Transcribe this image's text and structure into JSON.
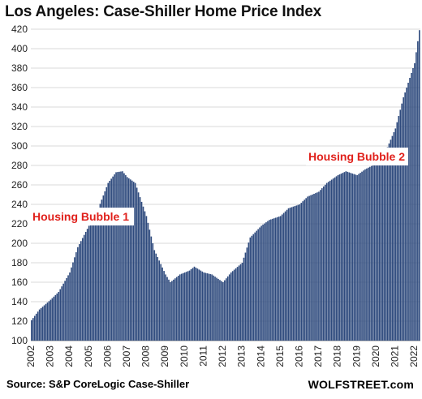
{
  "chart_data": {
    "type": "bar",
    "title": "Los Angeles: Case-Shiller Home Price Index",
    "xlabel": "",
    "ylabel": "",
    "ylim": [
      100,
      420
    ],
    "yticks": [
      100,
      120,
      140,
      160,
      180,
      200,
      220,
      240,
      260,
      280,
      300,
      320,
      340,
      360,
      380,
      400,
      420
    ],
    "xticks": [
      "2002",
      "2003",
      "2004",
      "2005",
      "2006",
      "2007",
      "2008",
      "2009",
      "2010",
      "2011",
      "2012",
      "2013",
      "2014",
      "2015",
      "2016",
      "2017",
      "2018",
      "2019",
      "2020",
      "2021",
      "2022"
    ],
    "grid": true,
    "bar_color": "#2e4a7d",
    "x_start": "2002-01",
    "x_end": "2022-04",
    "frequency": "monthly",
    "anchors": [
      [
        "2002-01",
        121
      ],
      [
        "2002-06",
        132
      ],
      [
        "2003-01",
        142
      ],
      [
        "2003-06",
        150
      ],
      [
        "2004-01",
        170
      ],
      [
        "2004-06",
        196
      ],
      [
        "2005-01",
        218
      ],
      [
        "2005-06",
        232
      ],
      [
        "2006-01",
        262
      ],
      [
        "2006-06",
        273
      ],
      [
        "2006-10",
        274
      ],
      [
        "2007-01",
        268
      ],
      [
        "2007-06",
        262
      ],
      [
        "2008-01",
        228
      ],
      [
        "2008-06",
        193
      ],
      [
        "2009-01",
        168
      ],
      [
        "2009-04",
        160
      ],
      [
        "2009-10",
        168
      ],
      [
        "2010-04",
        172
      ],
      [
        "2010-07",
        176
      ],
      [
        "2011-01",
        170
      ],
      [
        "2011-06",
        168
      ],
      [
        "2012-01",
        160
      ],
      [
        "2012-06",
        170
      ],
      [
        "2013-01",
        180
      ],
      [
        "2013-06",
        206
      ],
      [
        "2014-01",
        218
      ],
      [
        "2014-06",
        224
      ],
      [
        "2015-01",
        228
      ],
      [
        "2015-06",
        236
      ],
      [
        "2016-01",
        240
      ],
      [
        "2016-06",
        248
      ],
      [
        "2017-01",
        253
      ],
      [
        "2017-06",
        262
      ],
      [
        "2018-01",
        270
      ],
      [
        "2018-06",
        274
      ],
      [
        "2019-01",
        270
      ],
      [
        "2019-06",
        276
      ],
      [
        "2020-01",
        282
      ],
      [
        "2020-06",
        291
      ],
      [
        "2021-01",
        318
      ],
      [
        "2021-06",
        350
      ],
      [
        "2022-01",
        385
      ],
      [
        "2022-04",
        419
      ]
    ],
    "annotations": [
      "Housing Bubble 1",
      "Housing Bubble 2"
    ]
  },
  "footer": {
    "source": "Source: S&P CoreLogic Case-Shiller",
    "brand": "WOLFSTREET.com"
  }
}
